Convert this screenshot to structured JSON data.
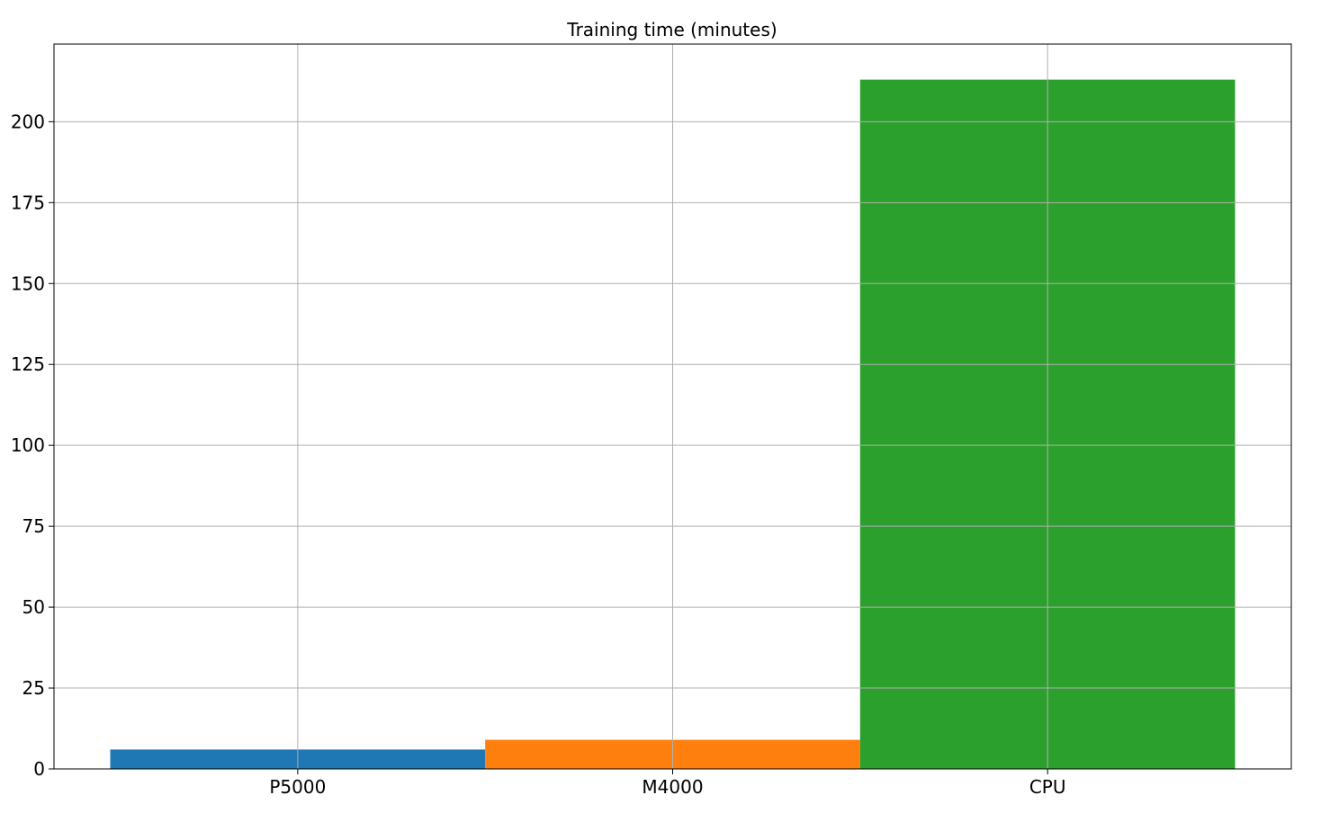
{
  "chart_data": {
    "type": "bar",
    "title": "Training time (minutes)",
    "xlabel": "",
    "ylabel": "",
    "categories": [
      "P5000",
      "M4000",
      "CPU"
    ],
    "values": [
      6,
      9,
      213
    ],
    "colors": [
      "#1f77b4",
      "#ff7f0e",
      "#2ca02c"
    ],
    "ylim": [
      0,
      224
    ],
    "yticks": [
      0,
      25,
      50,
      75,
      100,
      125,
      150,
      175,
      200
    ],
    "grid": true,
    "legend": "none"
  }
}
